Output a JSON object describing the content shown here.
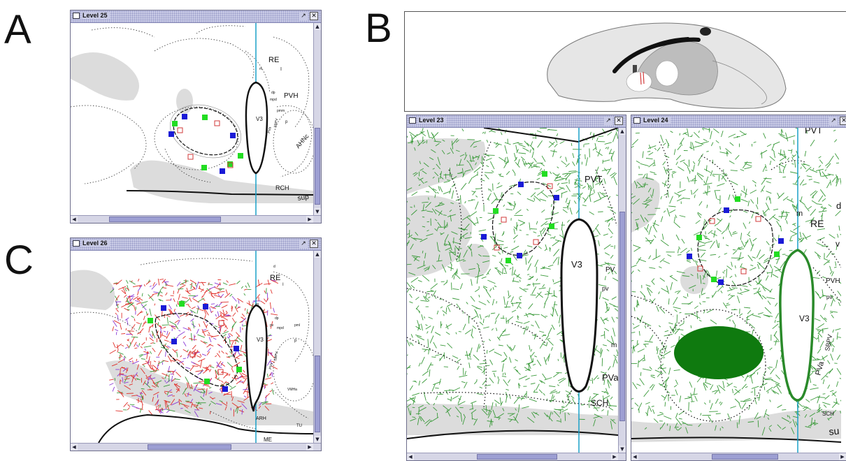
{
  "panels": {
    "A": "A",
    "B": "B",
    "C": "C"
  },
  "windows": {
    "level25": {
      "title": "Level 25"
    },
    "level26": {
      "title": "Level 26"
    },
    "level23": {
      "title": "Level 23"
    },
    "level24": {
      "title": "Level 24"
    }
  },
  "icons": {
    "maximize": "maximize-icon",
    "close": "close-icon",
    "window": "window-icon"
  },
  "labels_a": {
    "re": "RE",
    "i": "I",
    "pvh": "PVH",
    "v3": "V3",
    "ahnc": "AHNc",
    "rch": "RCH",
    "sup": "sup",
    "dp": "dp",
    "mpd": "mpd",
    "pmm": "pmm",
    "pva": "PVa",
    "sbpv": "SBPV",
    "p": "p",
    "m": "m"
  },
  "labels_c": {
    "re": "RE",
    "v3": "V3",
    "arh": "ARH",
    "me": "ME",
    "tu": "TU",
    "pva": "PVa",
    "sbpv": "SBPV",
    "mpd": "mpd",
    "pml": "pml",
    "p": "p",
    "vmhа": "VMHa",
    "dp": "dp",
    "m": "m",
    "d": "d",
    "i": "I",
    "pv": "pv"
  },
  "labels_b23": {
    "pvt": "PVT",
    "v3": "V3",
    "pv": "PV",
    "pvlow": "pv",
    "pva": "PVa",
    "sch": "SCH",
    "m": "m"
  },
  "labels_b24": {
    "pvt": "PVT",
    "re": "RE",
    "m": "m",
    "d": "d",
    "v": "v",
    "pvh": "PVH",
    "pv": "pv",
    "v3": "V3",
    "sbpv": "SBPV",
    "pva": "PVa",
    "sch": "SCH",
    "su": "su"
  },
  "colors": {
    "marker_blue": "#1a1ad6",
    "marker_green": "#22dd22",
    "marker_red": "#d23a3a",
    "midline": "#1aa0c8",
    "green_fibers": "#3a9a3a",
    "red_fibers": "#e0302a",
    "gray_region": "#dcdcdc",
    "window_title": "#c9cbe6",
    "scroll_thumb": "#9d9fd3"
  }
}
